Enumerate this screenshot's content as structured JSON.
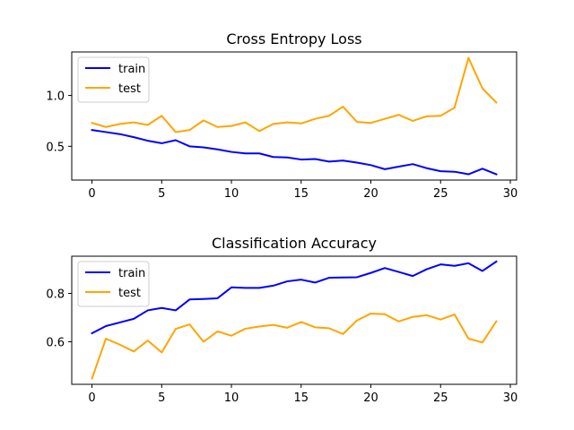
{
  "chart_data": [
    {
      "type": "line",
      "title": "Cross Entropy Loss",
      "xlabel": "",
      "ylabel": "",
      "xlim": [
        -1.45,
        30.45
      ],
      "ylim": [
        0.168,
        1.428
      ],
      "xticks": [
        0,
        5,
        10,
        15,
        20,
        25,
        30
      ],
      "yticks": [
        0.5,
        1.0
      ],
      "ytick_labels": [
        "0.5",
        "1.0"
      ],
      "legend": "top-left",
      "x": [
        0,
        1,
        2,
        3,
        4,
        5,
        6,
        7,
        8,
        9,
        10,
        11,
        12,
        13,
        14,
        15,
        16,
        17,
        18,
        19,
        20,
        21,
        22,
        23,
        24,
        25,
        26,
        27,
        28,
        29
      ],
      "series": [
        {
          "name": "train",
          "color": "#0000ff",
          "values": [
            0.66,
            0.64,
            0.62,
            0.59,
            0.555,
            0.53,
            0.56,
            0.5,
            0.49,
            0.47,
            0.445,
            0.43,
            0.43,
            0.395,
            0.39,
            0.37,
            0.375,
            0.35,
            0.36,
            0.34,
            0.315,
            0.275,
            0.3,
            0.325,
            0.285,
            0.255,
            0.25,
            0.225,
            0.28,
            0.225
          ]
        },
        {
          "name": "test",
          "color": "#ffa500",
          "values": [
            0.73,
            0.69,
            0.72,
            0.735,
            0.71,
            0.8,
            0.64,
            0.66,
            0.755,
            0.69,
            0.7,
            0.735,
            0.65,
            0.72,
            0.735,
            0.725,
            0.77,
            0.8,
            0.89,
            0.74,
            0.73,
            0.77,
            0.81,
            0.75,
            0.795,
            0.8,
            0.88,
            1.37,
            1.07,
            0.93
          ]
        }
      ]
    },
    {
      "type": "line",
      "title": "Classification Accuracy",
      "xlabel": "",
      "ylabel": "",
      "xlim": [
        -1.45,
        30.45
      ],
      "ylim": [
        0.424,
        0.954
      ],
      "xticks": [
        0,
        5,
        10,
        15,
        20,
        25,
        30
      ],
      "yticks": [
        0.6,
        0.8
      ],
      "ytick_labels": [
        "0.6",
        "0.8"
      ],
      "legend": "top-left",
      "x": [
        0,
        1,
        2,
        3,
        4,
        5,
        6,
        7,
        8,
        9,
        10,
        11,
        12,
        13,
        14,
        15,
        16,
        17,
        18,
        19,
        20,
        21,
        22,
        23,
        24,
        25,
        26,
        27,
        28,
        29
      ],
      "series": [
        {
          "name": "train",
          "color": "#0000ff",
          "values": [
            0.635,
            0.665,
            0.68,
            0.695,
            0.73,
            0.74,
            0.73,
            0.775,
            0.777,
            0.78,
            0.825,
            0.823,
            0.823,
            0.832,
            0.85,
            0.857,
            0.845,
            0.865,
            0.866,
            0.867,
            0.885,
            0.905,
            0.889,
            0.872,
            0.9,
            0.92,
            0.914,
            0.925,
            0.893,
            0.932
          ]
        },
        {
          "name": "test",
          "color": "#ffa500",
          "values": [
            0.448,
            0.613,
            0.588,
            0.56,
            0.605,
            0.556,
            0.653,
            0.672,
            0.6,
            0.643,
            0.625,
            0.654,
            0.663,
            0.67,
            0.658,
            0.682,
            0.66,
            0.656,
            0.632,
            0.688,
            0.717,
            0.714,
            0.684,
            0.703,
            0.71,
            0.692,
            0.713,
            0.613,
            0.597,
            0.685
          ]
        }
      ]
    }
  ]
}
